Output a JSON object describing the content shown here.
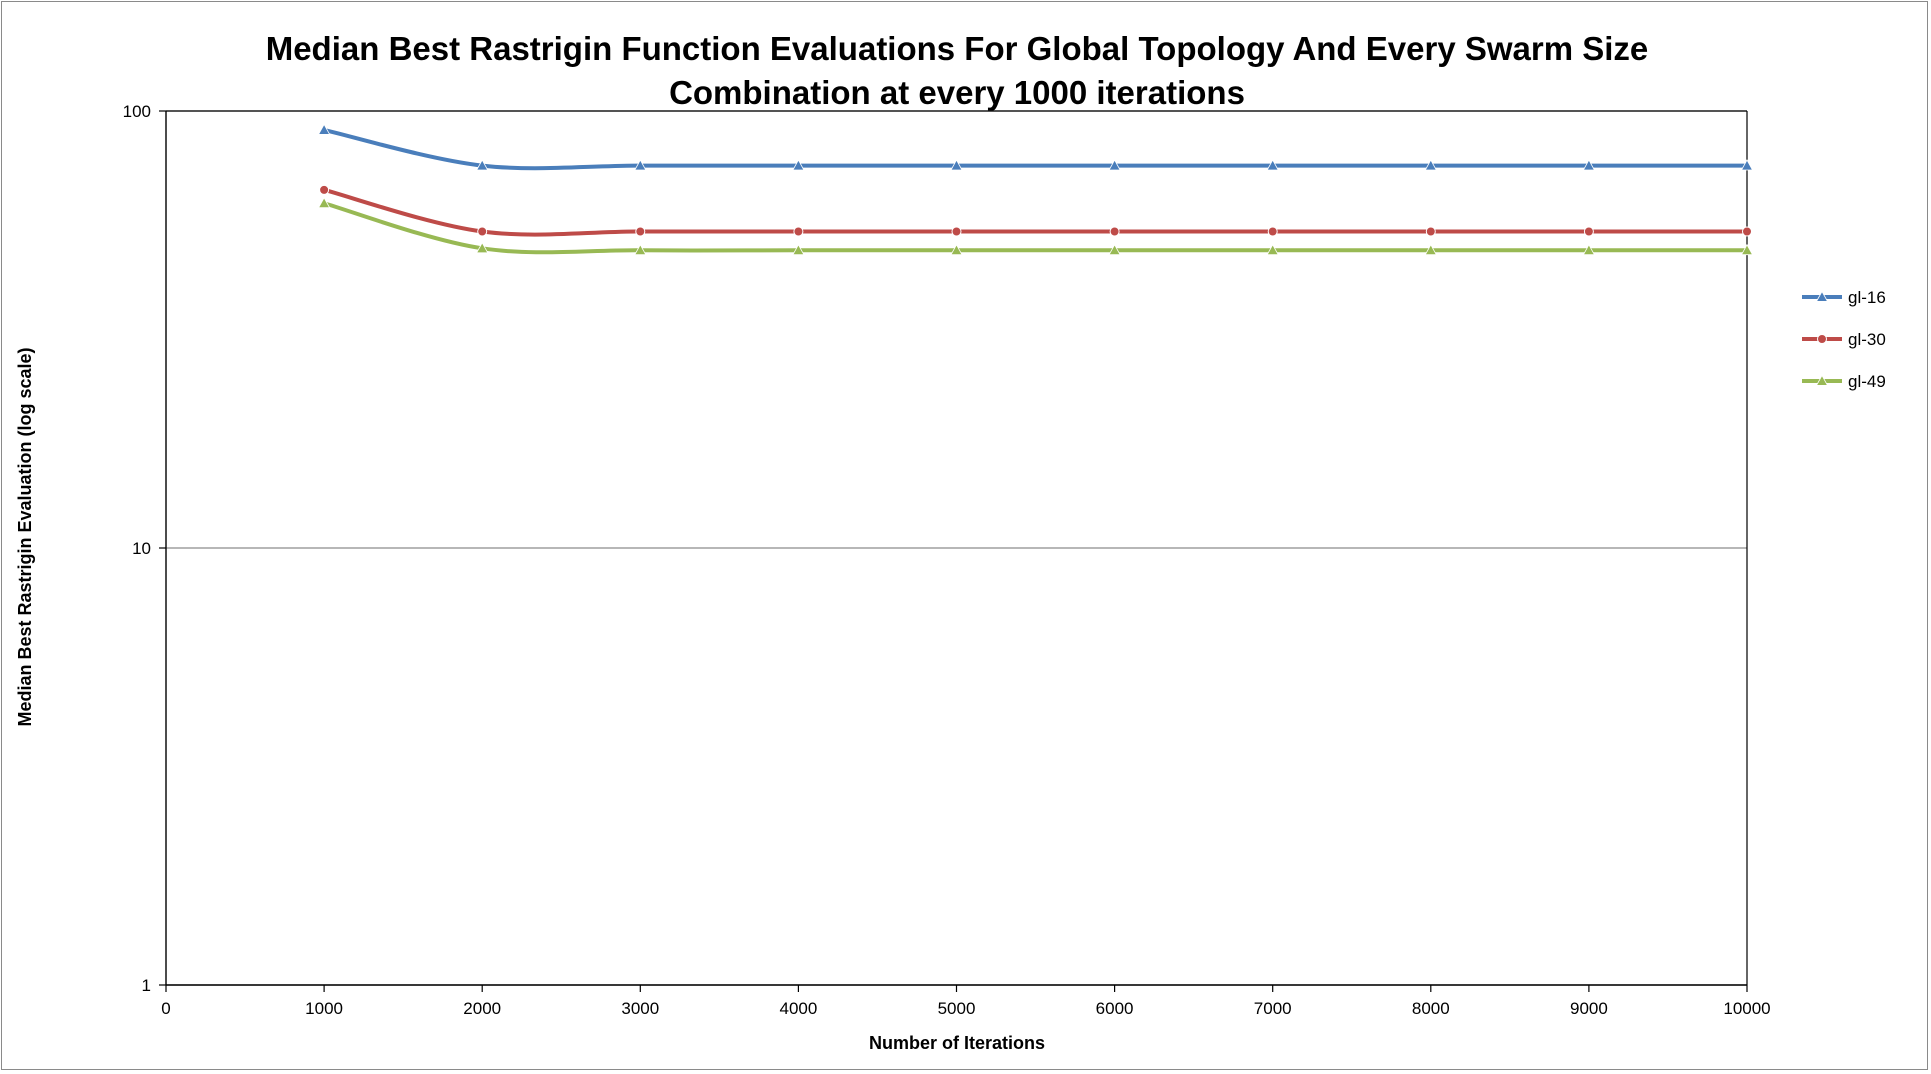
{
  "chart_data": {
    "type": "line",
    "title": "Median Best Rastrigin Function Evaluations For Global Topology And Every Swarm Size Combination at every 1000 iterations",
    "title_lines": [
      "Median Best Rastrigin Function Evaluations For Global Topology And Every Swarm Size",
      "Combination at every 1000 iterations"
    ],
    "xlabel": "Number of Iterations",
    "ylabel": "Median Best Rastrigin Evaluation (log scale)",
    "xlim": [
      0,
      10000
    ],
    "ylim": [
      1,
      100
    ],
    "y_scale": "log",
    "x_ticks": [
      0,
      1000,
      2000,
      3000,
      4000,
      5000,
      6000,
      7000,
      8000,
      9000,
      10000
    ],
    "y_ticks": [
      1,
      10,
      100
    ],
    "grid": "horizontal major gridlines",
    "legend_position": "right",
    "x": [
      1000,
      2000,
      3000,
      4000,
      5000,
      6000,
      7000,
      8000,
      9000,
      10000
    ],
    "series": [
      {
        "name": "gl-16",
        "color": "#4A7EBB",
        "marker": "triangle",
        "values": [
          90.5,
          75.0,
          75.0,
          75.0,
          75.0,
          75.0,
          75.0,
          75.0,
          75.0,
          75.0
        ]
      },
      {
        "name": "gl-30",
        "color": "#BE4B48",
        "marker": "circle",
        "values": [
          66.0,
          53.0,
          53.0,
          53.0,
          53.0,
          53.0,
          53.0,
          53.0,
          53.0,
          53.0
        ]
      },
      {
        "name": "gl-49",
        "color": "#98B954",
        "marker": "triangle",
        "values": [
          61.5,
          48.5,
          48.0,
          48.0,
          48.0,
          48.0,
          48.0,
          48.0,
          48.0,
          48.0
        ]
      }
    ]
  }
}
